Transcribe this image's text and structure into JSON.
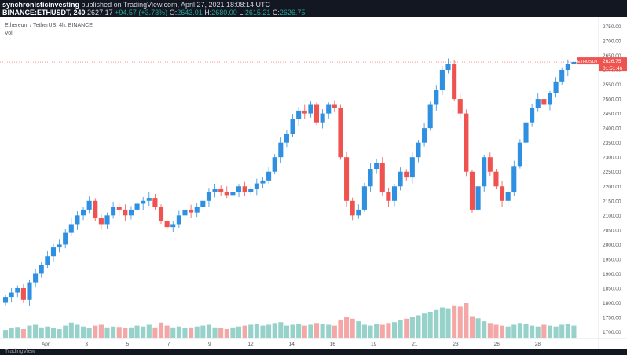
{
  "header": {
    "line1_user": "synchronisticinvesting",
    "line1_rest": "published on TradingView.com, April 27, 2021 18:08:14 UTC",
    "symbol": "BINANCE:ETHUSDT, 240",
    "price": "2627.17",
    "change": "+94.57 (+3.73%)",
    "o_label": "O:",
    "o": "2643.01",
    "h_label": "H:",
    "h": "2680.00",
    "l_label": "L:",
    "l": "2615.21",
    "c_label": "C:",
    "c": "2626.75"
  },
  "legend": {
    "title": "Ethereum / TetherUS, 4h, BINANCE",
    "vol": "Vol"
  },
  "price_label": {
    "symbol": "ETHUSDT",
    "value": "2626.75",
    "countdown": "01:51:46"
  },
  "footer": {
    "brand": "TradingView"
  },
  "colors": {
    "up": "#26a69a",
    "down": "#ef5350",
    "candle_up": "#2f8fe0",
    "candle_down": "#ef5350",
    "vol_up": "#96d2c9",
    "vol_down": "#f3a7a6"
  },
  "chart_data": {
    "type": "candlestick",
    "title": "Ethereum / TetherUS, 4h, BINANCE",
    "y_ticks": [
      1700,
      1750,
      1800,
      1850,
      1900,
      1950,
      2000,
      2050,
      2100,
      2150,
      2200,
      2250,
      2300,
      2350,
      2400,
      2450,
      2500,
      2550,
      2600,
      2650,
      2700,
      2750
    ],
    "ylim": [
      1680,
      2770
    ],
    "x_ticks": [
      "Apr",
      "3",
      "5",
      "7",
      "9",
      "12",
      "14",
      "16",
      "19",
      "21",
      "23",
      "26",
      "28"
    ],
    "last_price": 2626.75,
    "close_path": [
      1820,
      1835,
      1850,
      1810,
      1870,
      1900,
      1930,
      1960,
      1990,
      2000,
      2040,
      2070,
      2100,
      2120,
      2150,
      2090,
      2070,
      2100,
      2130,
      2120,
      2100,
      2120,
      2140,
      2150,
      2160,
      2130,
      2080,
      2060,
      2070,
      2100,
      2120,
      2110,
      2130,
      2150,
      2180,
      2190,
      2180,
      2170,
      2180,
      2200,
      2180,
      2190,
      2210,
      2220,
      2250,
      2300,
      2350,
      2380,
      2430,
      2460,
      2450,
      2480,
      2420,
      2450,
      2480,
      2470,
      2300,
      2150,
      2100,
      2120,
      2200,
      2260,
      2280,
      2180,
      2150,
      2200,
      2250,
      2230,
      2300,
      2350,
      2400,
      2480,
      2530,
      2600,
      2620,
      2500,
      2450,
      2250,
      2120,
      2200,
      2300,
      2250,
      2200,
      2150,
      2180,
      2270,
      2350,
      2420,
      2470,
      2500,
      2480,
      2520,
      2560,
      2600,
      2620,
      2627
    ],
    "volume_path": [
      18,
      22,
      25,
      20,
      28,
      30,
      24,
      26,
      22,
      20,
      28,
      35,
      30,
      26,
      22,
      28,
      30,
      24,
      26,
      25,
      22,
      24,
      28,
      26,
      30,
      24,
      35,
      28,
      24,
      26,
      22,
      24,
      26,
      28,
      30,
      24,
      22,
      20,
      24,
      26,
      28,
      30,
      32,
      28,
      30,
      34,
      36,
      28,
      30,
      32,
      28,
      30,
      34,
      32,
      30,
      28,
      42,
      48,
      44,
      38,
      30,
      28,
      32,
      30,
      34,
      36,
      40,
      44,
      48,
      52,
      56,
      60,
      64,
      70,
      68,
      75,
      72,
      65,
      50,
      45,
      38,
      34,
      30,
      28,
      26,
      30,
      34,
      32,
      28,
      26,
      30,
      28,
      26,
      30,
      32,
      28
    ],
    "volume_hi_down": [
      58,
      60,
      64
    ],
    "volume_spike": 80
  }
}
